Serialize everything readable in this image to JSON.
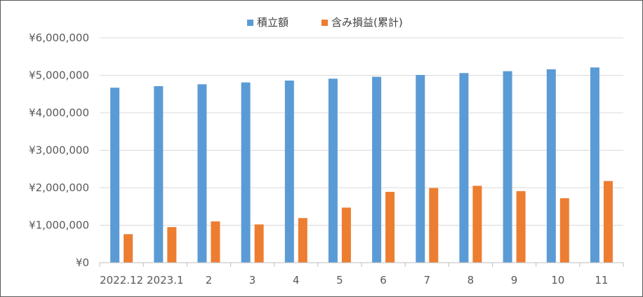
{
  "chart_data": {
    "type": "bar",
    "categories": [
      "2022.12",
      "2023.1",
      "2",
      "3",
      "4",
      "5",
      "6",
      "7",
      "8",
      "9",
      "10",
      "11"
    ],
    "series": [
      {
        "name": "積立額",
        "color": "#5b9bd5",
        "values": [
          4670000,
          4710000,
          4760000,
          4810000,
          4860000,
          4910000,
          4960000,
          5010000,
          5060000,
          5110000,
          5160000,
          5210000
        ]
      },
      {
        "name": "含み損益(累計)",
        "color": "#ed7d31",
        "values": [
          760000,
          950000,
          1100000,
          1020000,
          1190000,
          1470000,
          1890000,
          1990000,
          2050000,
          1910000,
          1720000,
          2180000
        ]
      }
    ],
    "yticks": [
      "¥0",
      "¥1,000,000",
      "¥2,000,000",
      "¥3,000,000",
      "¥4,000,000",
      "¥5,000,000",
      "¥6,000,000"
    ],
    "ylim": [
      0,
      6000000
    ],
    "legend_position": "top-center",
    "grid": true,
    "title": "",
    "xlabel": "",
    "ylabel": ""
  }
}
